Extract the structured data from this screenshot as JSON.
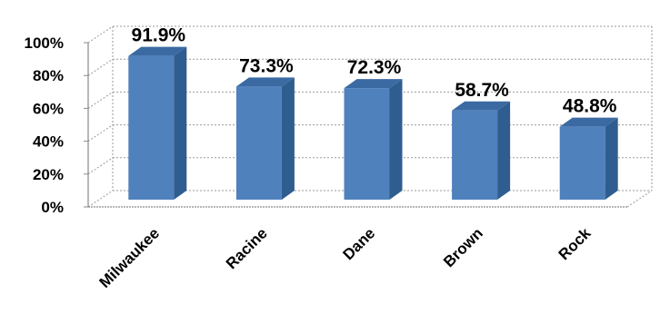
{
  "chart_data": {
    "type": "bar",
    "categories": [
      "Milwaukee",
      "Racine",
      "Dane",
      "Brown",
      "Rock"
    ],
    "values": [
      91.9,
      73.3,
      72.3,
      58.7,
      48.8
    ],
    "data_labels": [
      "91.9%",
      "73.3%",
      "72.3%",
      "58.7%",
      "48.8%"
    ],
    "yticks": [
      "0%",
      "20%",
      "40%",
      "60%",
      "80%",
      "100%"
    ],
    "ylim": [
      0,
      100
    ],
    "grid": true,
    "three_d": true,
    "bar_color": "#4f81bd",
    "bar_side_color": "#2f5d8f",
    "bar_top_color": "#3b6aa3"
  }
}
